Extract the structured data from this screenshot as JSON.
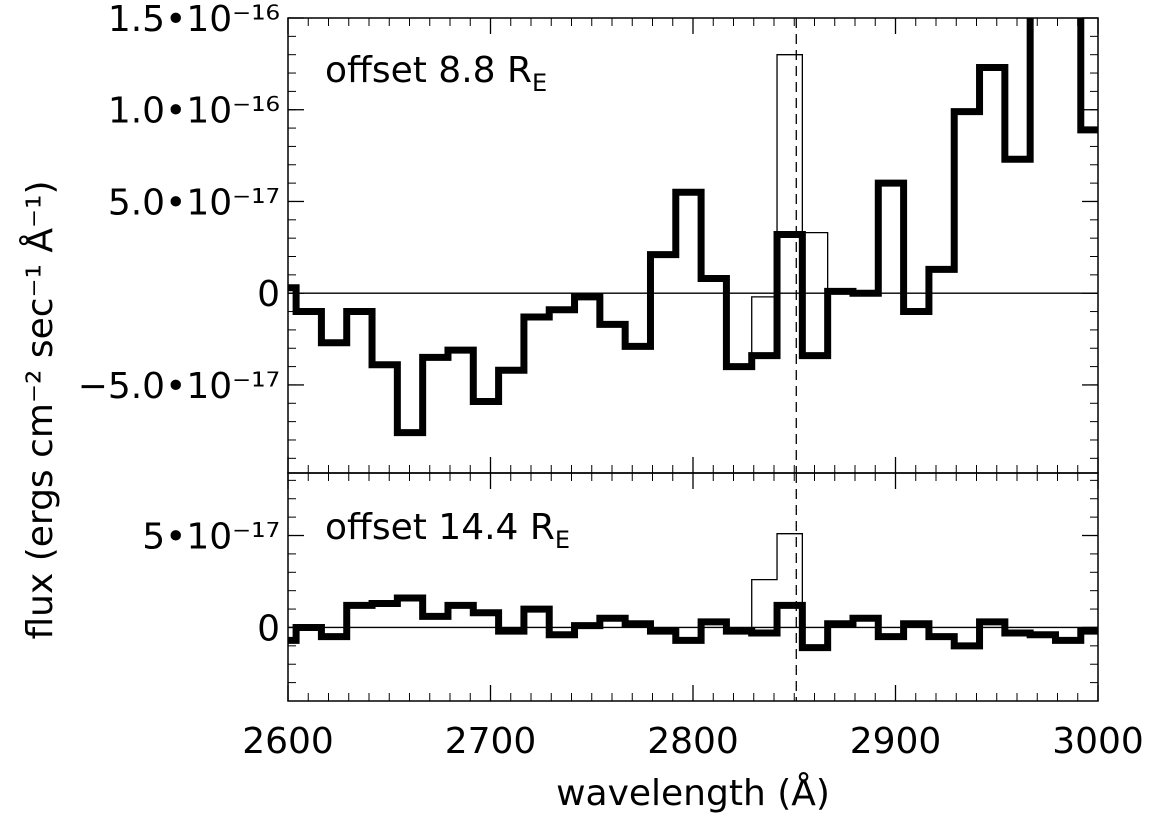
{
  "chart_data": [
    {
      "type": "step",
      "annotation": {
        "text": "offset 8.8 R",
        "subscript": "E"
      },
      "ylabel": "flux (ergs cm⁻² sec⁻¹ Å⁻¹)",
      "x": [
        2597.75,
        2610.25,
        2622.75,
        2635.25,
        2647.75,
        2660.25,
        2672.75,
        2685.25,
        2697.75,
        2710.25,
        2722.75,
        2735.25,
        2747.75,
        2760.25,
        2772.75,
        2785.25,
        2797.75,
        2810.25,
        2822.75,
        2835.25,
        2847.75,
        2860.25,
        2872.75,
        2885.25,
        2897.75,
        2910.25,
        2922.75,
        2935.25,
        2947.75,
        2960.25,
        2972.75,
        2985.25,
        2997.75
      ],
      "series": [
        {
          "color": "#000000",
          "line_width": 1.3,
          "values": [
            3e-18,
            -1e-17,
            -2.7e-17,
            -1e-17,
            -3.9e-17,
            -7.6e-17,
            -3.5e-17,
            -3.1e-17,
            -5.9e-17,
            -4.2e-17,
            -1.3e-17,
            -9e-18,
            -2e-18,
            -1.7e-17,
            -2.9e-17,
            2.1e-17,
            5.5e-17,
            8e-18,
            -4e-17,
            -2e-18,
            1.3e-16,
            3.3e-17,
            1e-18,
            0,
            6e-17,
            -1e-17,
            1.3e-17,
            9.9e-17,
            1.23e-16,
            7.3e-17,
            1.6e-16,
            1.6e-16,
            8.9e-17
          ]
        },
        {
          "color": "#000000",
          "line_width": 7,
          "values": [
            3e-18,
            -1e-17,
            -2.7e-17,
            -1e-17,
            -3.9e-17,
            -7.6e-17,
            -3.5e-17,
            -3.1e-17,
            -5.9e-17,
            -4.2e-17,
            -1.3e-17,
            -9e-18,
            -2e-18,
            -1.7e-17,
            -2.9e-17,
            2.1e-17,
            5.5e-17,
            8e-18,
            -4e-17,
            -3.4e-17,
            3.2e-17,
            -3.4e-17,
            1e-18,
            0,
            6e-17,
            -1e-17,
            1.3e-17,
            9.9e-17,
            1.23e-16,
            7.3e-17,
            1.6e-16,
            1.6e-16,
            8.9e-17
          ]
        }
      ],
      "reference_x": 2851,
      "xlim": [
        2600,
        3000
      ],
      "xticks": [
        2600,
        2700,
        2800,
        2900,
        3000
      ],
      "xminor_step": 10,
      "show_xtick_labels": false,
      "ylim": [
        -9.8e-17,
        1.5e-16
      ],
      "yticks": [
        {
          "value": -5e-17,
          "label": "−5.0•10⁻¹⁷"
        },
        0,
        {
          "value": 5e-17,
          "label": "5.0•10⁻¹⁷"
        },
        {
          "value": 1e-16,
          "label": "1.0•10⁻¹⁶"
        },
        {
          "value": 1.5e-16,
          "label": "1.5•10⁻¹⁶"
        }
      ],
      "yminor_step": 1e-17,
      "zero_line": true
    },
    {
      "type": "step",
      "annotation": {
        "text": "offset 14.4 R",
        "subscript": "E"
      },
      "xlabel": "wavelength (Å)",
      "x": [
        2597.75,
        2610.25,
        2622.75,
        2635.25,
        2647.75,
        2660.25,
        2672.75,
        2685.25,
        2697.75,
        2710.25,
        2722.75,
        2735.25,
        2747.75,
        2760.25,
        2772.75,
        2785.25,
        2797.75,
        2810.25,
        2822.75,
        2835.25,
        2847.75,
        2860.25,
        2872.75,
        2885.25,
        2897.75,
        2910.25,
        2922.75,
        2935.25,
        2947.75,
        2960.25,
        2972.75,
        2985.25,
        2997.75
      ],
      "series": [
        {
          "color": "#000000",
          "line_width": 1.3,
          "values": [
            -7e-18,
            0,
            -5e-18,
            1.2e-17,
            1.3e-17,
            1.6e-17,
            6e-18,
            1.2e-17,
            8e-18,
            -2e-18,
            1e-17,
            -4e-18,
            1e-18,
            5e-18,
            2e-18,
            -2e-18,
            -7e-18,
            3e-18,
            -2e-18,
            2.6e-17,
            5.1e-17,
            -1.1e-17,
            2e-18,
            5e-18,
            -5e-18,
            2e-18,
            -5e-18,
            -1e-17,
            3e-18,
            -3e-18,
            -4e-18,
            -7e-18,
            -2e-18
          ]
        },
        {
          "color": "#000000",
          "line_width": 7,
          "values": [
            -7e-18,
            0,
            -5e-18,
            1.2e-17,
            1.3e-17,
            1.6e-17,
            6e-18,
            1.2e-17,
            8e-18,
            -2e-18,
            1e-17,
            -4e-18,
            1e-18,
            5e-18,
            2e-18,
            -2e-18,
            -7e-18,
            3e-18,
            -2e-18,
            -3e-18,
            1.2e-17,
            -1.1e-17,
            2e-18,
            5e-18,
            -5e-18,
            2e-18,
            -5e-18,
            -1e-17,
            3e-18,
            -3e-18,
            -4e-18,
            -7e-18,
            -2e-18
          ]
        }
      ],
      "reference_x": 2851,
      "xlim": [
        2600,
        3000
      ],
      "xticks": [
        2600,
        2700,
        2800,
        2900,
        3000
      ],
      "xminor_step": 10,
      "show_xtick_labels": true,
      "ylim": [
        -4e-17,
        8.4e-17
      ],
      "yticks": [
        0,
        {
          "value": 5e-17,
          "label": "5•10⁻¹⁷"
        }
      ],
      "yminor_step": 1e-17,
      "zero_line": true
    }
  ]
}
